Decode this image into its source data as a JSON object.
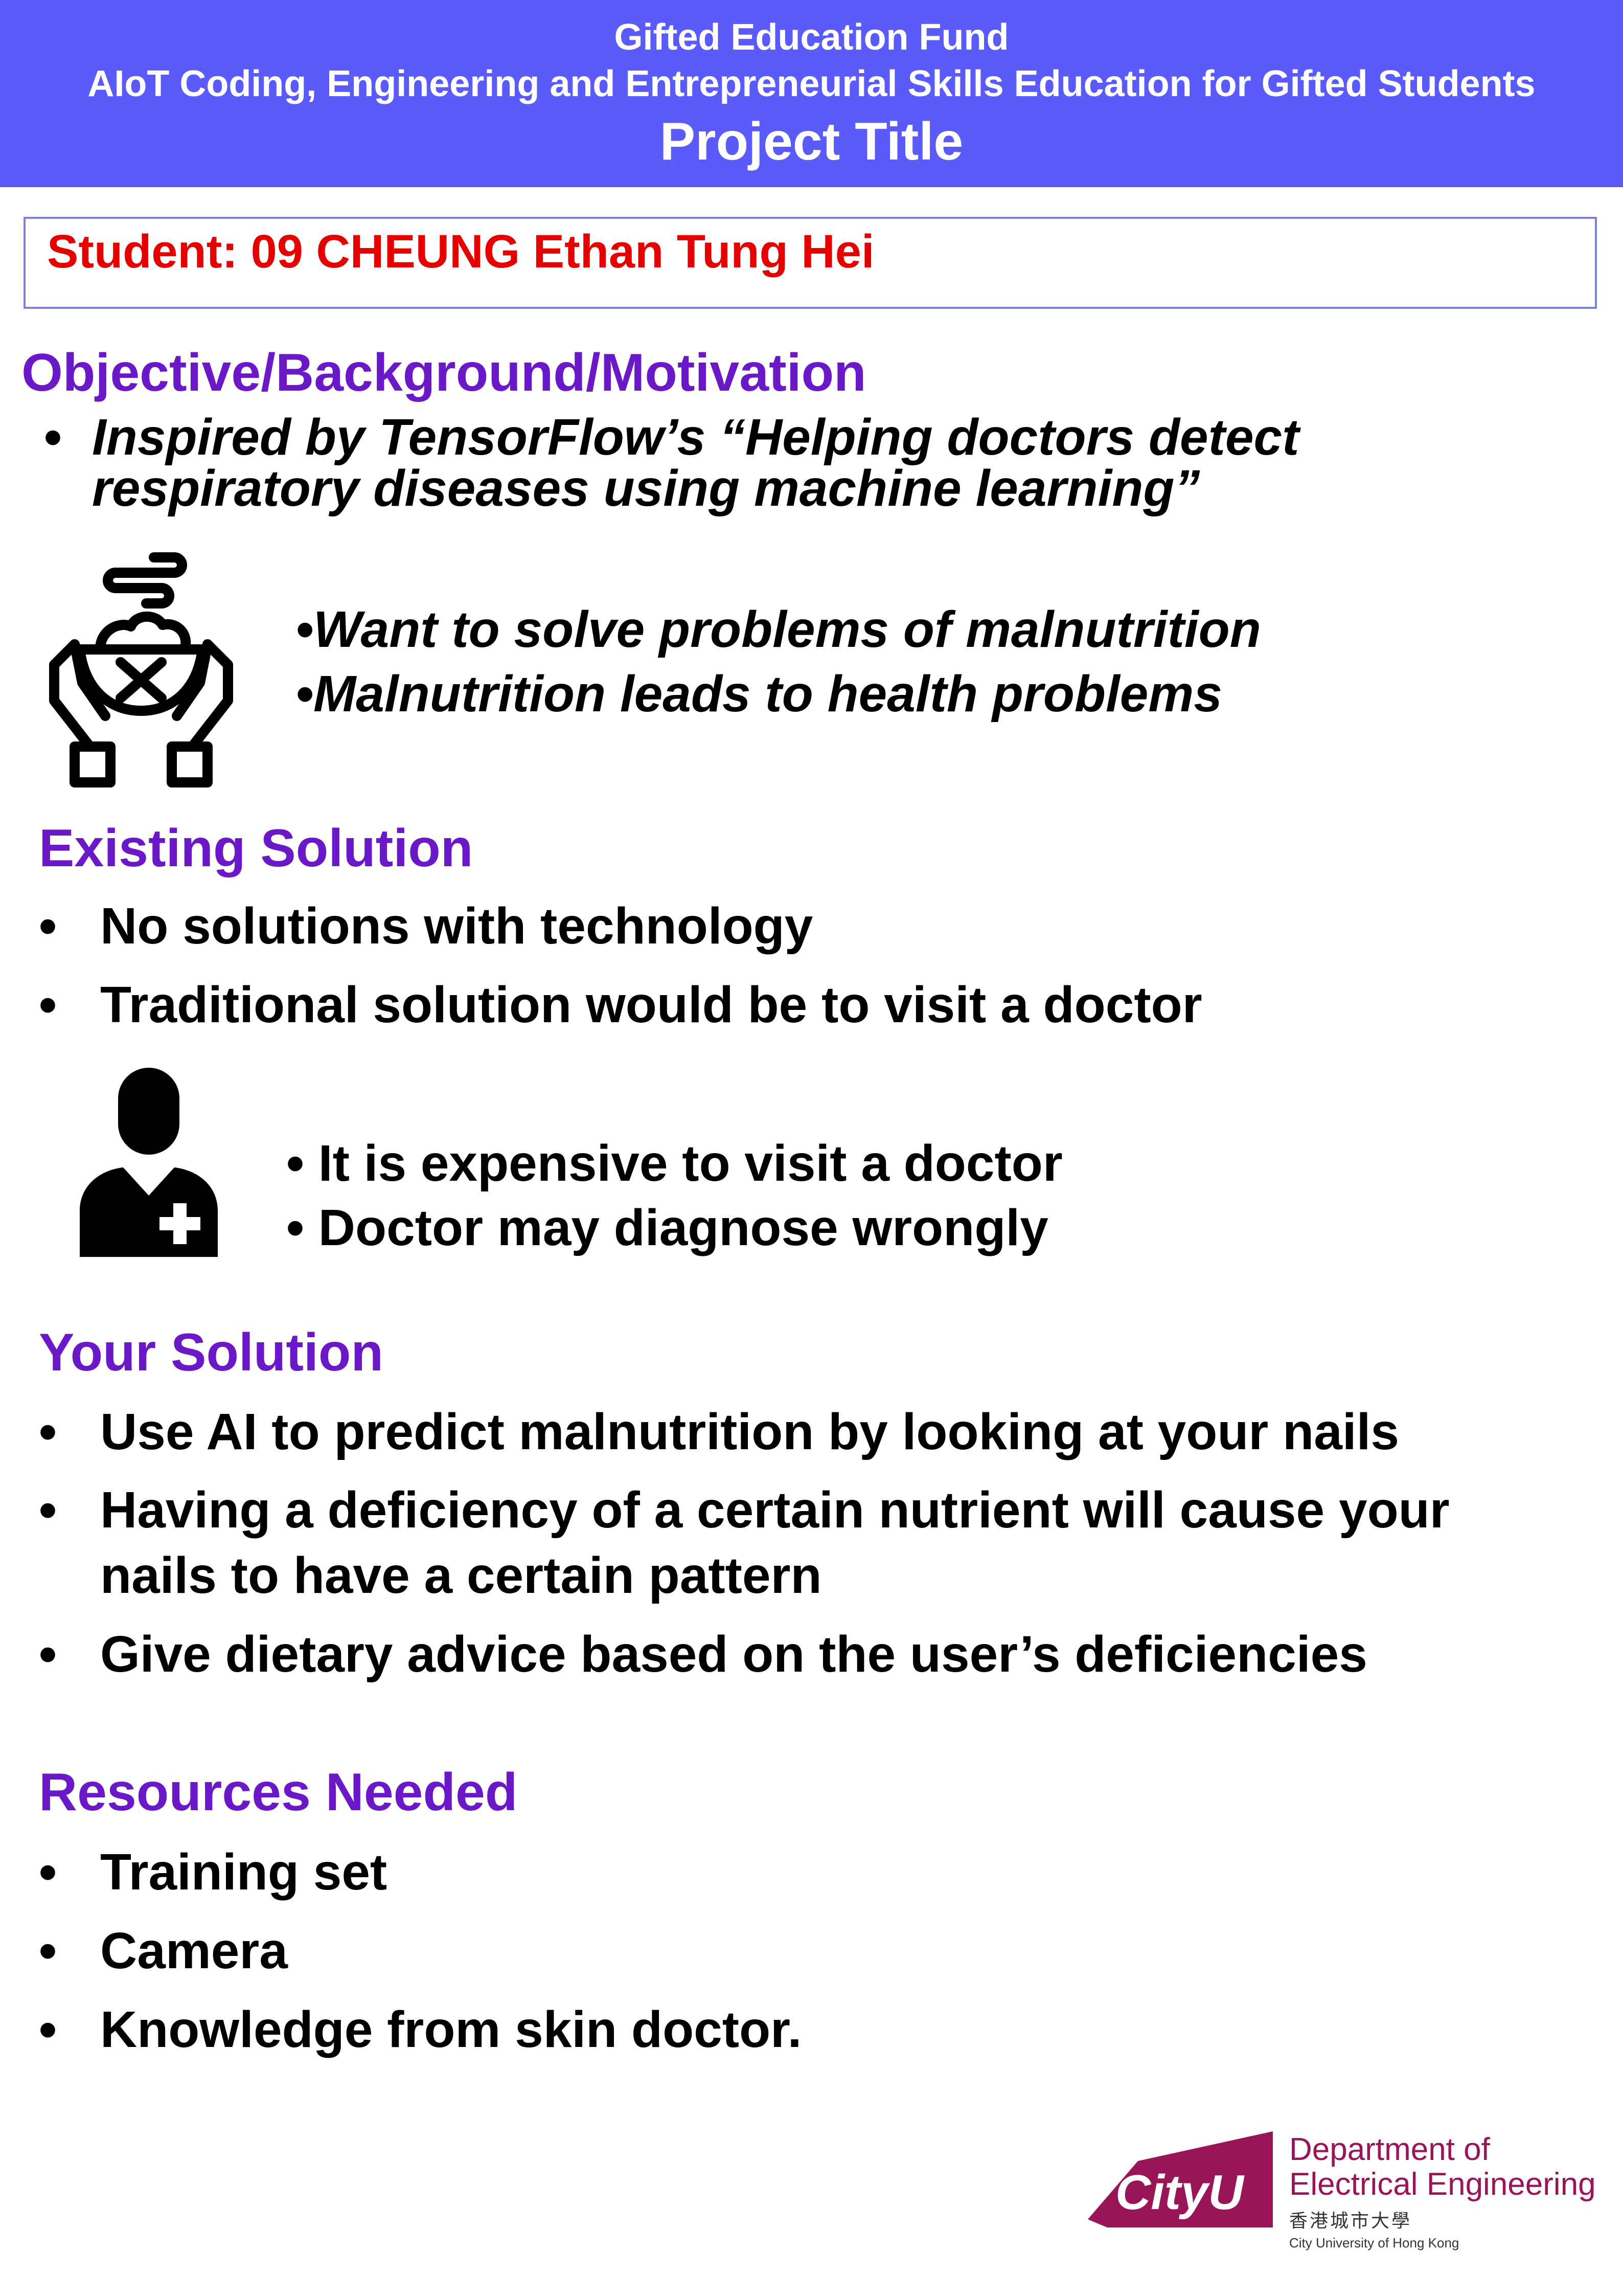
{
  "header": {
    "line1": "Gifted Education Fund",
    "line2": "AIoT Coding, Engineering and Entrepreneurial Skills Education for Gifted Students",
    "title": "Project Title",
    "background_color": "#5b5bfc"
  },
  "student": {
    "label": "Student: 09 CHEUNG Ethan Tung Hei",
    "color": "#e60000"
  },
  "sections": {
    "objective": {
      "title": "Objective/Background/Motivation",
      "bullet_line1": "Inspired by TensorFlow’s “Helping doctors detect",
      "bullet_line2": "respiratory diseases using machine learning”",
      "icon": "malnutrition-bowl-hands-icon",
      "sub_points": [
        "•Want to solve problems of malnutrition",
        "•Malnutrition leads to health problems"
      ]
    },
    "existing": {
      "title": "Existing Solution",
      "bullets": [
        "No solutions with technology",
        "Traditional solution would be to visit a doctor"
      ],
      "icon": "doctor-icon",
      "sub_points": [
        "• It is expensive to visit a doctor",
        "• Doctor may diagnose wrongly"
      ]
    },
    "your_solution": {
      "title": "Your Solution",
      "bullet1": "Use AI to predict malnutrition by looking at your nails",
      "bullet2_line1": "Having a deficiency of a certain nutrient will cause your",
      "bullet2_line2": "nails to have a certain pattern",
      "bullet3": "Give dietary advice based on the user’s deficiencies"
    },
    "resources": {
      "title": "Resources Needed",
      "bullets": [
        "Training set",
        "Camera",
        "Knowledge from skin doctor."
      ]
    }
  },
  "bullet_symbol": "•",
  "footer": {
    "logo_text": "CityU",
    "dept_line1": "Department of",
    "dept_line2": "Electrical Engineering",
    "chinese_name": "香港城市大學",
    "english_name": "City University of Hong Kong",
    "brand_color": "#9a1458"
  },
  "accent_color": "#6a18c8"
}
